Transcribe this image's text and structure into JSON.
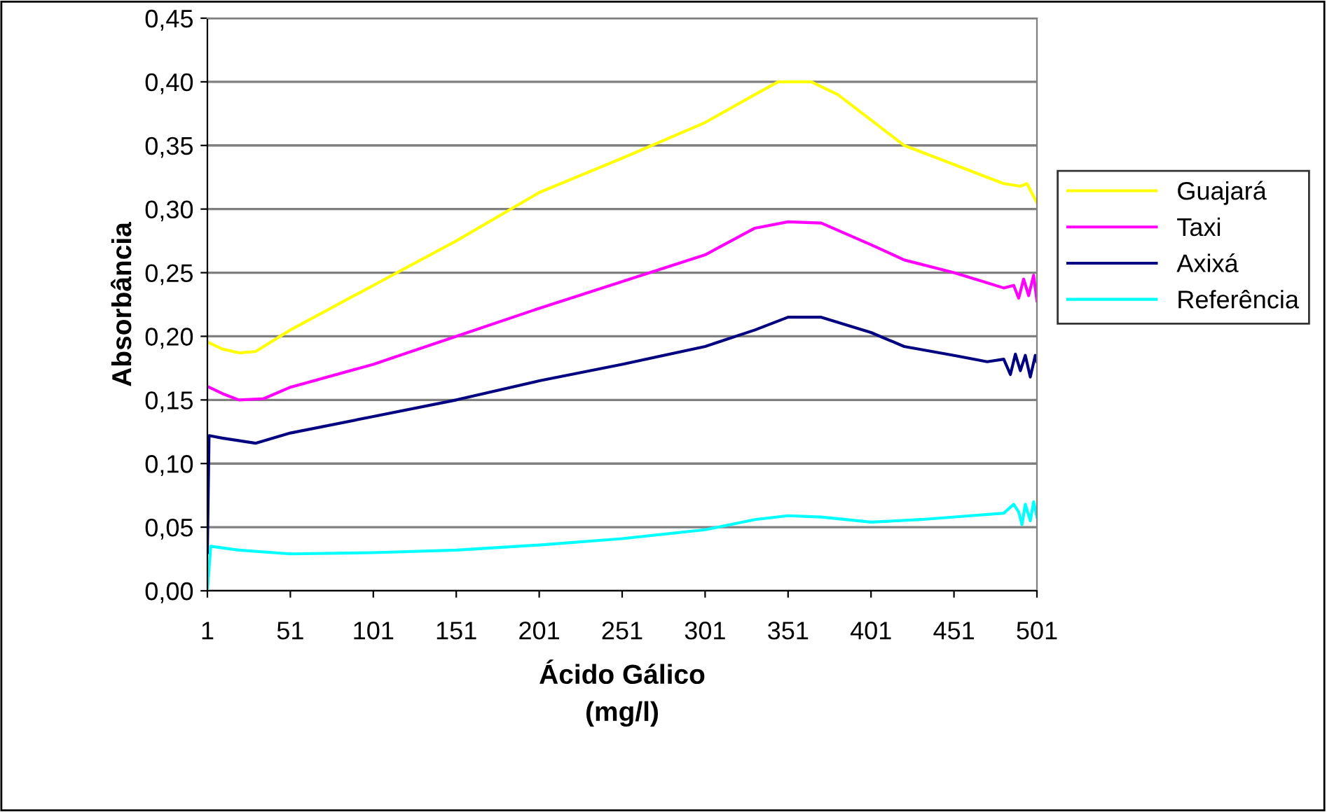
{
  "chart_data": {
    "type": "line",
    "xlabel": "Ácido Gálico\n(mg/l)",
    "ylabel": "Absorbância",
    "xlim": [
      1,
      501
    ],
    "xticks": [
      1,
      51,
      101,
      151,
      201,
      251,
      301,
      351,
      401,
      451,
      501
    ],
    "ylim": [
      0,
      0.45
    ],
    "yticks": [
      {
        "value": 0,
        "label": "0,00"
      },
      {
        "value": 0.05,
        "label": "0,05"
      },
      {
        "value": 0.1,
        "label": "0,10"
      },
      {
        "value": 0.15,
        "label": "0,15"
      },
      {
        "value": 0.2,
        "label": "0,20"
      },
      {
        "value": 0.25,
        "label": "0,25"
      },
      {
        "value": 0.3,
        "label": "0,30"
      },
      {
        "value": 0.35,
        "label": "0,35"
      },
      {
        "value": 0.4,
        "label": "0,40"
      },
      {
        "value": 0.45,
        "label": "0,45"
      }
    ],
    "grid": "y",
    "legend": "right",
    "marker": "none",
    "line_style": "solid",
    "series": [
      {
        "name": "Guajará",
        "color": "#ffff00",
        "x": [
          2,
          10,
          20,
          30,
          51,
          101,
          151,
          201,
          251,
          301,
          331,
          345,
          365,
          381,
          401,
          421,
          451,
          471,
          481,
          491,
          495,
          499,
          501
        ],
        "values": [
          0.195,
          0.19,
          0.187,
          0.188,
          0.205,
          0.24,
          0.275,
          0.313,
          0.34,
          0.368,
          0.39,
          0.4,
          0.4,
          0.39,
          0.37,
          0.35,
          0.335,
          0.325,
          0.32,
          0.318,
          0.32,
          0.31,
          0.305
        ]
      },
      {
        "name": "Taxi",
        "color": "#ff00ff",
        "x": [
          2,
          10,
          20,
          35,
          51,
          101,
          151,
          201,
          251,
          301,
          331,
          351,
          371,
          401,
          421,
          451,
          471,
          481,
          487,
          490,
          493,
          496,
          499,
          501
        ],
        "values": [
          0.16,
          0.155,
          0.15,
          0.151,
          0.16,
          0.178,
          0.2,
          0.222,
          0.243,
          0.264,
          0.285,
          0.29,
          0.289,
          0.272,
          0.26,
          0.25,
          0.242,
          0.238,
          0.24,
          0.23,
          0.245,
          0.232,
          0.248,
          0.228
        ]
      },
      {
        "name": "Axixá",
        "color": "#000080",
        "x": [
          1,
          2,
          10,
          30,
          51,
          101,
          151,
          201,
          251,
          301,
          331,
          351,
          371,
          401,
          421,
          451,
          471,
          481,
          485,
          488,
          491,
          494,
          497,
          500,
          501
        ],
        "values": [
          0.03,
          0.122,
          0.12,
          0.116,
          0.124,
          0.137,
          0.15,
          0.165,
          0.178,
          0.192,
          0.205,
          0.215,
          0.215,
          0.203,
          0.192,
          0.185,
          0.18,
          0.182,
          0.17,
          0.186,
          0.173,
          0.185,
          0.168,
          0.185,
          0.18
        ]
      },
      {
        "name": "Referência",
        "color": "#00ffff",
        "x": [
          1,
          3,
          20,
          51,
          101,
          151,
          201,
          251,
          301,
          331,
          351,
          371,
          401,
          431,
          461,
          481,
          487,
          490,
          492,
          494,
          497,
          499,
          501
        ],
        "values": [
          0,
          0.035,
          0.032,
          0.029,
          0.03,
          0.032,
          0.036,
          0.041,
          0.048,
          0.056,
          0.059,
          0.058,
          0.054,
          0.056,
          0.059,
          0.061,
          0.068,
          0.062,
          0.052,
          0.068,
          0.055,
          0.07,
          0.058
        ]
      }
    ]
  }
}
